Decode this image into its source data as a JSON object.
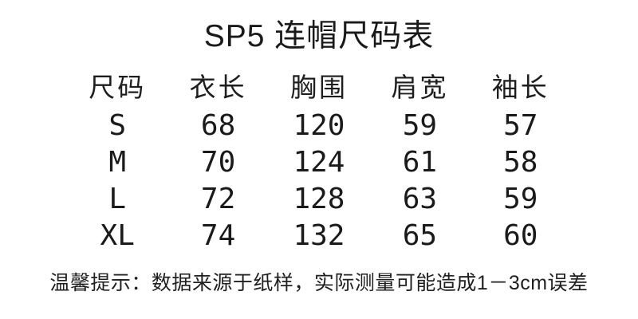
{
  "title": "SP5 连帽尺码表",
  "table": {
    "headers": [
      "尺码",
      "衣长",
      "胸围",
      "肩宽",
      "袖长"
    ],
    "rows": [
      {
        "size": "S",
        "values": [
          "68",
          "120",
          "59",
          "57"
        ]
      },
      {
        "size": "M",
        "values": [
          "70",
          "124",
          "61",
          "58"
        ]
      },
      {
        "size": "L",
        "values": [
          "72",
          "128",
          "63",
          "59"
        ]
      },
      {
        "size": "XL",
        "values": [
          "74",
          "132",
          "65",
          "60"
        ]
      }
    ]
  },
  "note": "温馨提示：数据来源于纸样，实际测量可能造成1－3cm误差",
  "colors": {
    "background": "#ffffff",
    "text": "#1a1a1a"
  }
}
